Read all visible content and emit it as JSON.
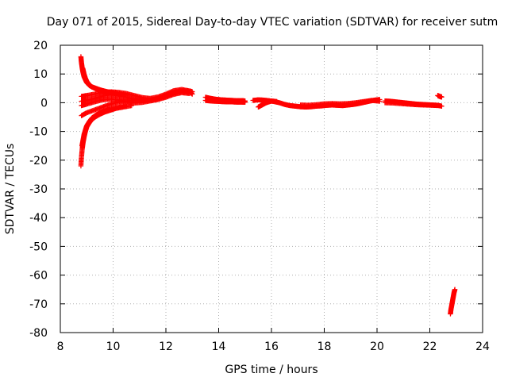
{
  "chart_data": {
    "type": "scatter",
    "title": "Day 071 of 2015, Sidereal Day-to-day VTEC variation (SDTVAR) for receiver sutm",
    "xlabel": "GPS time / hours",
    "ylabel": "SDTVAR / TECUs",
    "xlim": [
      8,
      24
    ],
    "ylim": [
      -80,
      20
    ],
    "xticks": [
      8,
      10,
      12,
      14,
      16,
      18,
      20,
      22,
      24
    ],
    "yticks": [
      20,
      10,
      0,
      -10,
      -20,
      -30,
      -40,
      -50,
      -60,
      -70,
      -80
    ],
    "xtick_labels": [
      "8",
      "10",
      "12",
      "14",
      "16",
      "18",
      "20",
      "22",
      "24"
    ],
    "ytick_labels": [
      "20",
      "10",
      "0",
      "-10",
      "-20",
      "-30",
      "-40",
      "-50",
      "-60",
      "-70",
      "-80"
    ],
    "grid": true,
    "marker": "+",
    "color": "#ff0000",
    "series": [
      {
        "name": "arc-down-1",
        "x": [
          8.78,
          8.8,
          8.83,
          8.86,
          8.9,
          8.95,
          9.0,
          9.1,
          9.2,
          9.35,
          9.5,
          9.7,
          9.9,
          10.1,
          10.3
        ],
        "y": [
          16,
          14,
          12,
          10.5,
          9,
          8,
          7,
          6,
          5.5,
          5,
          4.5,
          4,
          3.6,
          3.2,
          2.8
        ]
      },
      {
        "name": "arc-down-2",
        "x": [
          8.85,
          8.9,
          8.95,
          9.0,
          9.1,
          9.2,
          9.35,
          9.5,
          9.7,
          9.9,
          10.2,
          10.5
        ],
        "y": [
          12,
          10,
          8.5,
          7.5,
          6.3,
          5.5,
          4.8,
          4.2,
          3.7,
          3.3,
          3.0,
          2.7
        ]
      },
      {
        "name": "arc-up-1",
        "x": [
          8.78,
          8.8,
          8.83,
          8.86,
          8.9,
          8.95,
          9.0,
          9.1,
          9.2,
          9.35,
          9.5,
          9.7,
          9.9,
          10.1,
          10.4,
          10.7
        ],
        "y": [
          -22,
          -19,
          -16,
          -14,
          -12,
          -10,
          -8.5,
          -7,
          -5.8,
          -4.8,
          -4,
          -3.2,
          -2.6,
          -2.0,
          -1.5,
          -1.0
        ]
      },
      {
        "name": "arc-up-2",
        "x": [
          8.82,
          8.86,
          8.9,
          8.95,
          9.0,
          9.1,
          9.2,
          9.35,
          9.5,
          9.7,
          9.9,
          10.2,
          10.5
        ],
        "y": [
          -15,
          -13,
          -11,
          -9.5,
          -8,
          -6.5,
          -5.3,
          -4.3,
          -3.5,
          -2.8,
          -2.2,
          -1.6,
          -1.1
        ]
      },
      {
        "name": "band-1",
        "x": [
          8.8,
          9.0,
          9.3,
          9.6,
          9.9,
          10.2,
          10.5,
          10.8,
          11.1,
          11.4,
          11.7,
          12.0,
          12.3,
          12.6,
          12.9,
          13.0
        ],
        "y": [
          2.2,
          2.5,
          3.0,
          3.5,
          3.8,
          3.6,
          3.2,
          2.5,
          1.8,
          1.5,
          2.0,
          3.0,
          4.2,
          4.6,
          4.1,
          3.8
        ]
      },
      {
        "name": "band-2",
        "x": [
          8.8,
          9.0,
          9.3,
          9.6,
          9.9,
          10.2,
          10.5,
          10.8,
          11.1,
          11.4,
          11.7,
          12.0,
          12.3,
          12.6,
          12.9
        ],
        "y": [
          -4.5,
          -3.5,
          -2.5,
          -1.5,
          -0.5,
          0.2,
          0.6,
          0.8,
          0.9,
          1.0,
          1.4,
          2.2,
          3.3,
          3.9,
          3.6
        ]
      },
      {
        "name": "band-3",
        "x": [
          8.8,
          9.0,
          9.3,
          9.6,
          9.9,
          10.2,
          10.5,
          10.8,
          11.1,
          11.4,
          11.7,
          12.0,
          12.3,
          12.6,
          12.9,
          13.0
        ],
        "y": [
          0.5,
          0.8,
          1.5,
          2.3,
          2.8,
          2.5,
          1.9,
          1.2,
          0.7,
          0.8,
          1.4,
          2.5,
          3.6,
          4.3,
          3.9,
          3.0
        ]
      },
      {
        "name": "band-4",
        "x": [
          8.8,
          9.0,
          9.3,
          9.6,
          9.9,
          10.2,
          10.5,
          10.8,
          11.1,
          11.4,
          11.7,
          12.0,
          12.3,
          12.6,
          12.9
        ],
        "y": [
          -1.0,
          -0.5,
          0.3,
          1.0,
          1.3,
          1.0,
          0.4,
          -0.1,
          0.1,
          0.6,
          1.1,
          1.9,
          2.9,
          3.5,
          3.2
        ]
      },
      {
        "name": "segment-13.5-15",
        "x": [
          13.5,
          13.7,
          13.9,
          14.1,
          14.3,
          14.5,
          14.7,
          14.9,
          15.0
        ],
        "y": [
          1.9,
          1.5,
          1.2,
          1.0,
          0.9,
          0.8,
          0.7,
          0.7,
          0.6
        ]
      },
      {
        "name": "segment-13.5-15b",
        "x": [
          13.5,
          13.7,
          13.9,
          14.1,
          14.3,
          14.5,
          14.7,
          14.9,
          15.0
        ],
        "y": [
          0.8,
          0.6,
          0.5,
          0.4,
          0.3,
          0.3,
          0.2,
          0.2,
          0.2
        ]
      },
      {
        "name": "segment-15.3-17",
        "x": [
          15.3,
          15.5,
          15.7,
          15.9,
          16.1,
          16.3,
          16.5,
          16.7,
          16.9,
          17.1
        ],
        "y": [
          0.8,
          1.0,
          0.9,
          0.7,
          0.4,
          0.0,
          -0.6,
          -1.0,
          -1.2,
          -1.4
        ]
      },
      {
        "name": "segment-15.5-dip",
        "x": [
          15.5,
          15.6,
          15.7,
          15.8,
          15.9,
          16.0,
          16.2
        ],
        "y": [
          -1.5,
          -1.0,
          -0.5,
          0.0,
          0.3,
          0.6,
          0.4
        ]
      },
      {
        "name": "segment-17-20",
        "x": [
          17.1,
          17.3,
          17.5,
          17.7,
          17.9,
          18.1,
          18.3,
          18.5,
          18.7,
          18.9,
          19.1,
          19.3,
          19.5,
          19.7,
          19.9,
          20.1
        ],
        "y": [
          -1.4,
          -1.5,
          -1.4,
          -1.2,
          -1.1,
          -0.9,
          -0.8,
          -0.9,
          -1.0,
          -0.8,
          -0.6,
          -0.3,
          0.1,
          0.5,
          0.9,
          1.1
        ]
      },
      {
        "name": "segment-17-20b",
        "x": [
          17.1,
          17.4,
          17.7,
          18.0,
          18.3,
          18.6,
          18.9,
          19.2,
          19.5,
          19.8,
          20.1
        ],
        "y": [
          -0.8,
          -0.9,
          -0.7,
          -0.4,
          -0.3,
          -0.4,
          -0.3,
          0.0,
          0.4,
          0.8,
          0.5
        ]
      },
      {
        "name": "segment-20.3-22.4",
        "x": [
          20.3,
          20.5,
          20.7,
          20.9,
          21.1,
          21.3,
          21.5,
          21.7,
          21.9,
          22.1,
          22.3,
          22.45
        ],
        "y": [
          0.6,
          0.5,
          0.3,
          0.1,
          -0.1,
          -0.3,
          -0.5,
          -0.6,
          -0.7,
          -0.8,
          -0.9,
          -1.2
        ]
      },
      {
        "name": "segment-20.3-22.4b",
        "x": [
          20.3,
          20.6,
          20.9,
          21.2,
          21.5,
          21.8,
          22.1,
          22.35
        ],
        "y": [
          0.0,
          -0.1,
          -0.3,
          -0.5,
          -0.7,
          -0.8,
          -0.9,
          -1.0
        ]
      },
      {
        "name": "segment-22.3-jump",
        "x": [
          22.3,
          22.35,
          22.4,
          22.45
        ],
        "y": [
          2.5,
          2.3,
          2.1,
          2.0
        ]
      },
      {
        "name": "segment-22.8-outlier",
        "x": [
          22.78,
          22.8,
          22.83,
          22.86,
          22.89,
          22.92,
          22.95
        ],
        "y": [
          -73.5,
          -72,
          -70.5,
          -69,
          -67.5,
          -66,
          -65
        ]
      }
    ]
  }
}
